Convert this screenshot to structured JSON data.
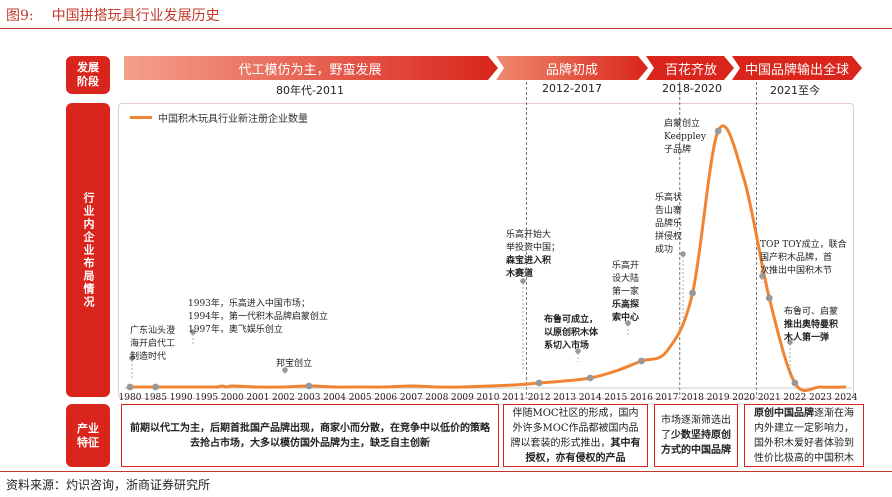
{
  "figure": {
    "number": "图9:",
    "title": "中国拼搭玩具行业发展历史"
  },
  "source": "资料来源：灼识咨询，浙商证券研究所",
  "side_labels": {
    "stage": "发展阶段",
    "layout": "行业内企业布局情况",
    "feature": "产业特征"
  },
  "stages": [
    {
      "name": "代工模仿为主，野蛮发展",
      "period": "80年代-2011"
    },
    {
      "name": "品牌初成",
      "period": "2012-2017"
    },
    {
      "name": "百花齐放",
      "period": "2018-2020"
    },
    {
      "name": "中国品牌输出全球",
      "period": "2021至今"
    }
  ],
  "features": [
    {
      "parts": [
        {
          "t": "前期以代工为主，后期首批国产品牌出现，商家小而分散，在竞争中以低价的策略去抢占市场，大多以模仿国外品牌为主，缺乏自主创新",
          "b": true
        }
      ]
    },
    {
      "parts": [
        {
          "t": "伴随MOC社区的形成，国内外许多MOC作品都被国内品牌以套装的形式推出，",
          "b": false
        },
        {
          "t": "其中有授权，亦有侵权的产品",
          "b": true
        }
      ]
    },
    {
      "parts": [
        {
          "t": "市场逐渐筛选出了",
          "b": false
        },
        {
          "t": "少数坚持原创方式的中国品牌",
          "b": true
        }
      ]
    },
    {
      "parts": [
        {
          "t": "原创中国品牌",
          "b": true
        },
        {
          "t": "逐渐在海内外建立一定影响力，国外积木爱好者体验到性价比极高的中国积木",
          "b": false
        }
      ]
    }
  ],
  "chart_data": {
    "type": "line",
    "series": [
      {
        "name": "中国积木玩具行业新注册企业数量",
        "color": "#f08432"
      }
    ],
    "x": [
      1980,
      1981,
      1982,
      1983,
      1984,
      1985,
      1986,
      1987,
      1988,
      1989,
      1990,
      1991,
      1992,
      1993,
      1994,
      1995,
      1996,
      1997,
      1998,
      1999,
      2000,
      2001,
      2002,
      2003,
      2004,
      2005,
      2006,
      2007,
      2008,
      2009,
      2010,
      2011,
      2012,
      2013,
      2014,
      2015,
      2016,
      2017,
      2018,
      2019,
      2020,
      2021,
      2022,
      2023,
      2024
    ],
    "values": [
      1,
      1,
      1,
      1,
      1,
      1,
      1,
      1,
      1,
      1,
      1,
      1,
      1,
      1,
      1,
      1,
      1,
      1,
      2,
      1,
      2,
      1,
      1,
      2,
      1,
      1,
      1,
      2,
      1,
      1,
      2,
      3,
      5,
      7,
      10,
      17,
      27,
      37,
      95,
      257,
      210,
      90,
      5,
      1,
      1
    ],
    "ylim": [
      0,
      270
    ],
    "xticks": [
      "1980",
      "1985",
      "1990",
      "1995",
      "2000",
      "2001",
      "2002",
      "2003",
      "2004",
      "2005",
      "2006",
      "2007",
      "2008",
      "2009",
      "2010",
      "2011",
      "2012",
      "2013",
      "2014",
      "2015",
      "2016",
      "2017",
      "2018",
      "2019",
      "2020",
      "2021",
      "2022",
      "2023",
      "2024"
    ],
    "annotations": [
      {
        "year": 1980,
        "lines": [
          {
            "t": "广东汕头澄",
            "b": false
          },
          {
            "t": "海开启代工",
            "b": false
          },
          {
            "t": "制造时代",
            "b": false
          }
        ]
      },
      {
        "year": 1985,
        "lines": [
          {
            "t": "1993年，乐高进入中国市场；",
            "b": false
          },
          {
            "t": "1994年，第一代积木品牌启蒙创立",
            "b": false
          },
          {
            "t": "1997年，奥飞娱乐创立",
            "b": false
          }
        ]
      },
      {
        "year": 2003,
        "lines": [
          {
            "t": "邦宝创立",
            "b": false
          }
        ]
      },
      {
        "year": 2012,
        "lines": [
          {
            "t": "乐高开始大",
            "b": false
          },
          {
            "t": "举投资中国；",
            "b": false
          },
          {
            "t": "森宝进入积",
            "b": true
          },
          {
            "t": "木赛道",
            "b": true
          }
        ]
      },
      {
        "year": 2014,
        "lines": [
          {
            "t": "布鲁可成立，",
            "b": true
          },
          {
            "t": "以原创积木体",
            "b": true
          },
          {
            "t": "系切入市场",
            "b": true
          }
        ]
      },
      {
        "year": 2016,
        "lines": [
          {
            "t": "乐高开",
            "b": false
          },
          {
            "t": "设大陆",
            "b": false
          },
          {
            "t": "第一家",
            "b": false
          },
          {
            "t": "乐高探",
            "b": true
          },
          {
            "t": "索中心",
            "b": true
          }
        ]
      },
      {
        "year": 2018,
        "lines": [
          {
            "t": "乐高状",
            "b": false
          },
          {
            "t": "告山寨",
            "b": false
          },
          {
            "t": "品牌乐",
            "b": false
          },
          {
            "t": "拼侵权",
            "b": false
          },
          {
            "t": "成功",
            "b": false
          }
        ]
      },
      {
        "year": 2019,
        "lines": [
          {
            "t": "启蒙创立",
            "b": false
          },
          {
            "t": "Keeppley",
            "b": false
          },
          {
            "t": "子品牌",
            "b": false
          }
        ]
      },
      {
        "year": 2021,
        "lines": [
          {
            "t": "TOP TOY成立，联合",
            "b": false
          },
          {
            "t": "国产积木品牌，首",
            "b": false
          },
          {
            "t": "次推出中国积木节",
            "b": false
          }
        ]
      },
      {
        "year": 2022,
        "lines": [
          {
            "t": "布鲁可、启蒙",
            "b": false
          },
          {
            "t": "推出奥特曼积",
            "b": true
          },
          {
            "t": "木人第一弹",
            "b": true
          }
        ]
      }
    ]
  }
}
